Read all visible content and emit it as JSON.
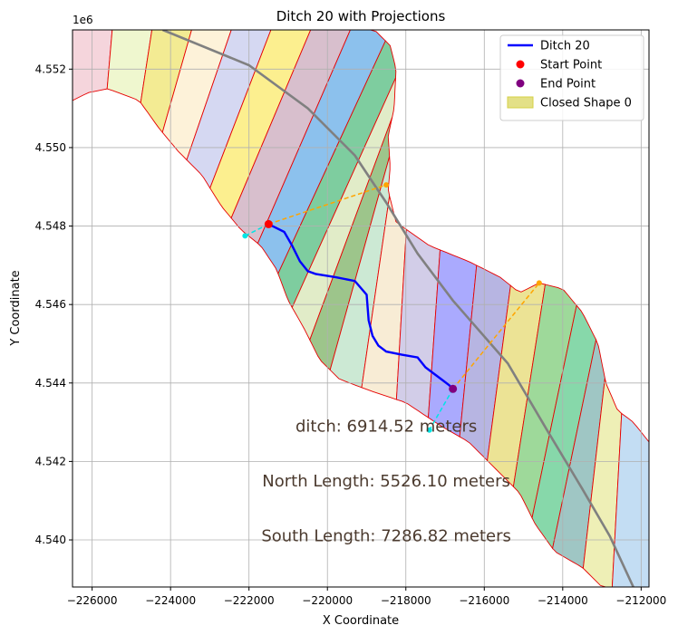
{
  "chart_data": {
    "type": "line",
    "title": "Ditch 20 with Projections",
    "xlabel": "X Coordinate",
    "ylabel": "Y Coordinate",
    "y_offset_label": "1e6",
    "xlim": [
      -226500,
      -211800
    ],
    "ylim": [
      4538800,
      4553000
    ],
    "x_ticks": [
      -226000,
      -224000,
      -222000,
      -220000,
      -218000,
      -216000,
      -214000,
      -212000
    ],
    "x_tick_labels": [
      "−226000",
      "−224000",
      "−222000",
      "−220000",
      "−218000",
      "−216000",
      "−214000",
      "−212000"
    ],
    "y_ticks": [
      4540000,
      4542000,
      4544000,
      4546000,
      4548000,
      4550000,
      4552000
    ],
    "y_tick_labels": [
      "4.540",
      "4.542",
      "4.544",
      "4.546",
      "4.548",
      "4.550",
      "4.552"
    ],
    "grid": true,
    "legend_position": "top-right",
    "legend": [
      {
        "label": "Ditch 20",
        "kind": "line",
        "color": "#0000ff"
      },
      {
        "label": "Start Point",
        "kind": "marker",
        "color": "#ff0000"
      },
      {
        "label": "End Point",
        "kind": "marker",
        "color": "#800080"
      },
      {
        "label": "Closed Shape 0",
        "kind": "patch",
        "color": "#d4d046"
      }
    ],
    "annotations": [
      {
        "text": "ditch: 6914.52 meters",
        "x": -218500,
        "y": 4542900
      },
      {
        "text": "North Length: 5526.10 meters",
        "x": -218500,
        "y": 4541500
      },
      {
        "text": "South Length: 7286.82 meters",
        "x": -218500,
        "y": 4540100
      }
    ],
    "ditch": {
      "name": "Ditch 20",
      "color": "#0000ff",
      "x": [
        -221500,
        -221100,
        -220900,
        -220700,
        -220500,
        -220300,
        -219800,
        -219300,
        -219000,
        -218950,
        -218850,
        -218700,
        -218500,
        -218100,
        -217700,
        -217500,
        -217300,
        -217100,
        -216900,
        -216800
      ],
      "y": [
        4548050,
        4547850,
        4547500,
        4547100,
        4546850,
        4546780,
        4546700,
        4546600,
        4546250,
        4545600,
        4545200,
        4544950,
        4544800,
        4544720,
        4544650,
        4544400,
        4544250,
        4544100,
        4543950,
        4543850
      ]
    },
    "start_point": {
      "x": -221500,
      "y": 4548050,
      "color": "#ff0000"
    },
    "end_point": {
      "x": -216800,
      "y": 4543850,
      "color": "#800080"
    },
    "centerline": {
      "color": "#808080",
      "x": [
        -224200,
        -222000,
        -220500,
        -219300,
        -218500,
        -217700,
        -216800,
        -215400,
        -214400,
        -213500,
        -212800,
        -212200
      ],
      "y": [
        4553000,
        4552100,
        4551000,
        4549800,
        4548600,
        4547300,
        4546100,
        4544500,
        4542800,
        4541300,
        4540100,
        4538800
      ]
    },
    "projections": [
      {
        "color": "#ffa500",
        "x": [
          -221500,
          -218500
        ],
        "y": [
          4548050,
          4549050
        ]
      },
      {
        "color": "#00e5e5",
        "x": [
          -221500,
          -222100
        ],
        "y": [
          4548050,
          4547750
        ]
      },
      {
        "color": "#ffa500",
        "x": [
          -216800,
          -214600
        ],
        "y": [
          4543850,
          4546550
        ]
      },
      {
        "color": "#00e5e5",
        "x": [
          -216800,
          -217400
        ],
        "y": [
          4543850,
          4542800
        ]
      }
    ],
    "region_outline": {
      "north": [
        [
          -226500,
          4553000
        ],
        [
          -224200,
          4553000
        ],
        [
          -222000,
          4553000
        ],
        [
          -220000,
          4553000
        ],
        [
          -218800,
          4553000
        ],
        [
          -218400,
          4552600
        ],
        [
          -218250,
          4552000
        ],
        [
          -218300,
          4551000
        ],
        [
          -218450,
          4550300
        ],
        [
          -218400,
          4549500
        ],
        [
          -218450,
          4548900
        ],
        [
          -218250,
          4548100
        ],
        [
          -217400,
          4547500
        ],
        [
          -216400,
          4547100
        ],
        [
          -215600,
          4546700
        ],
        [
          -215100,
          4546300
        ],
        [
          -214600,
          4546550
        ],
        [
          -214000,
          4546400
        ],
        [
          -213500,
          4545800
        ],
        [
          -213100,
          4545000
        ],
        [
          -212900,
          4544000
        ],
        [
          -212600,
          4543300
        ],
        [
          -212200,
          4543000
        ],
        [
          -211800,
          4542500
        ]
      ],
      "south": [
        [
          -211800,
          4538800
        ],
        [
          -212500,
          4538800
        ],
        [
          -213000,
          4538800
        ],
        [
          -213500,
          4539300
        ],
        [
          -214200,
          4539700
        ],
        [
          -214700,
          4540400
        ],
        [
          -215100,
          4541200
        ],
        [
          -215700,
          4541800
        ],
        [
          -216400,
          4542500
        ],
        [
          -217100,
          4542900
        ],
        [
          -218000,
          4543500
        ],
        [
          -218900,
          4543800
        ],
        [
          -219700,
          4544100
        ],
        [
          -220200,
          4544600
        ],
        [
          -220600,
          4545400
        ],
        [
          -221000,
          4546100
        ],
        [
          -221300,
          4546900
        ],
        [
          -221700,
          4547500
        ],
        [
          -222200,
          4547900
        ],
        [
          -222700,
          4548500
        ],
        [
          -223200,
          4549300
        ],
        [
          -223800,
          4549900
        ],
        [
          -224300,
          4550500
        ],
        [
          -224800,
          4551200
        ],
        [
          -225600,
          4551500
        ],
        [
          -226100,
          4551400
        ],
        [
          -226500,
          4551200
        ]
      ]
    },
    "strip_colors": [
      "#f5d5dc",
      "#eff7cf",
      "#f3eb93",
      "#fdf2d9",
      "#d5d8f2",
      "#fcef8f",
      "#d8bfcd",
      "#8cc1ed",
      "#7ecd9f",
      "#e1ecc8",
      "#9dc58b",
      "#cce9d4",
      "#f8ecd5",
      "#d2cde8",
      "#aaaafe",
      "#b7b5e2",
      "#ece395",
      "#9ed99a",
      "#87d8aa",
      "#9fc6c4",
      "#eeefb6",
      "#c3ddf3"
    ]
  }
}
